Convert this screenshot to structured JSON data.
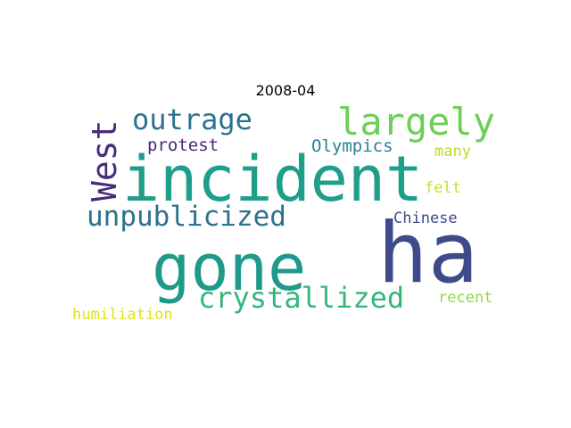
{
  "title": "2008-04",
  "words": [
    {
      "text": "incident",
      "color": "#1f9e89"
    },
    {
      "text": "ha",
      "color": "#3e4a89"
    },
    {
      "text": "gone",
      "color": "#1f9a8a"
    },
    {
      "text": "largely",
      "color": "#6ece58"
    },
    {
      "text": "outrage",
      "color": "#2c728e"
    },
    {
      "text": "West",
      "color": "#472d7b"
    },
    {
      "text": "unpublicized",
      "color": "#2c728e"
    },
    {
      "text": "crystallized",
      "color": "#35b779"
    },
    {
      "text": "protest",
      "color": "#482878"
    },
    {
      "text": "Olympics",
      "color": "#26828e"
    },
    {
      "text": "many",
      "color": "#b5de2b"
    },
    {
      "text": "felt",
      "color": "#c8e020"
    },
    {
      "text": "Chinese",
      "color": "#3e4989"
    },
    {
      "text": "recent",
      "color": "#8fd744"
    },
    {
      "text": "humiliation",
      "color": "#dde318"
    }
  ]
}
